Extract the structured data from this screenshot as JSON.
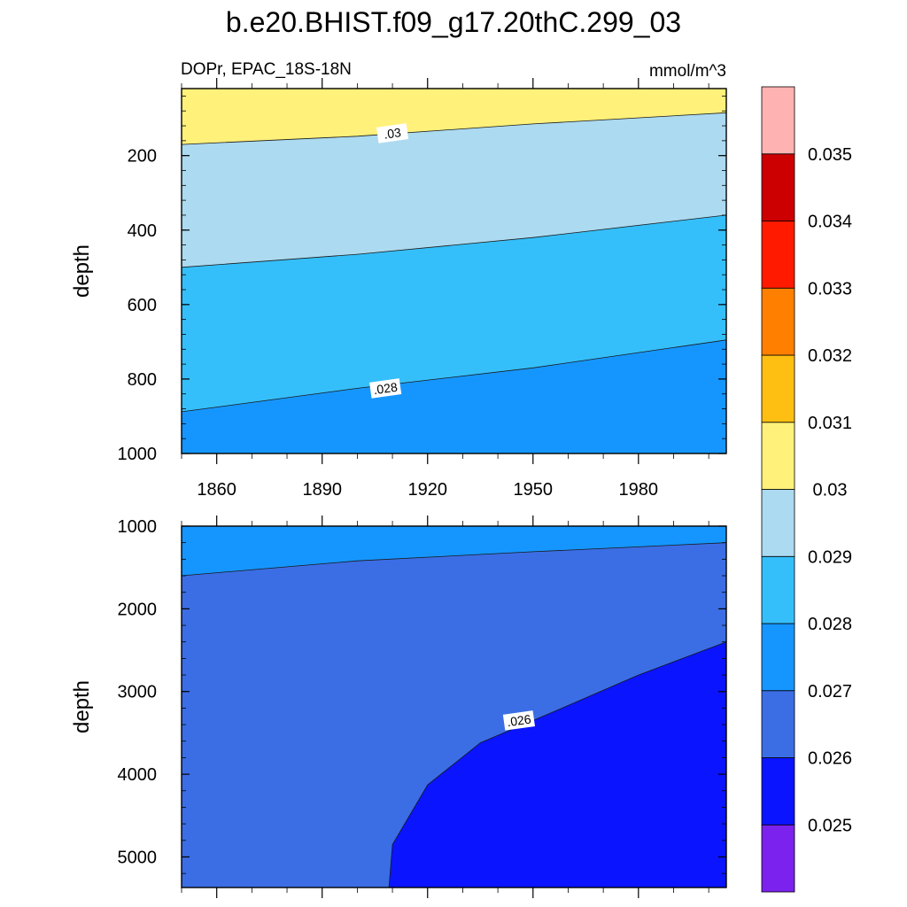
{
  "title": "b.e20.BHIST.f09_g17.20thC.299_03",
  "left_subtitle": "DOPr, EPAC_18S-18N",
  "right_subtitle": "mmol/m^3",
  "colors": {
    "0.0245": "#7B22EE",
    "0.0255": "#0A14FF",
    "0.0265": "#3B6EE5",
    "0.0275": "#1596FF",
    "0.0285": "#35BFFA",
    "0.0295": "#ACDAF0",
    "0.0305": "#FFF17A",
    "0.0315": "#FFBF12",
    "0.0325": "#FF7F00",
    "0.0335": "#FF1A00",
    "0.0345": "#CC0000",
    "0.0355": "#FFB2B2"
  },
  "chart_data": [
    {
      "type": "contour",
      "panel": "top",
      "ylabel": "depth",
      "x_ticks": [
        1860,
        1890,
        1920,
        1950,
        1980
      ],
      "y_ticks": [
        200,
        400,
        600,
        800,
        1000
      ],
      "xlim": [
        1850,
        2005
      ],
      "ylim": [
        1000,
        20
      ],
      "y_inverted": true,
      "background_band": 0.0275,
      "contours": [
        {
          "level": 0.028,
          "label": ".028",
          "upper_band": 0.0285,
          "points": [
            [
              1850,
              888
            ],
            [
              1900,
              825
            ],
            [
              1950,
              770
            ],
            [
              2005,
              695
            ]
          ],
          "label_at": [
            1908,
            825
          ]
        },
        {
          "level": 0.029,
          "upper_band": 0.0295,
          "points": [
            [
              1850,
              500
            ],
            [
              1900,
              465
            ],
            [
              1950,
              420
            ],
            [
              2005,
              360
            ]
          ]
        },
        {
          "level": 0.03,
          "label": ".03",
          "upper_band": 0.0305,
          "points": [
            [
              1850,
              170
            ],
            [
              1900,
              148
            ],
            [
              1950,
              115
            ],
            [
              2005,
              85
            ]
          ],
          "label_at": [
            1910,
            140
          ]
        }
      ]
    },
    {
      "type": "contour",
      "panel": "bottom",
      "ylabel": "depth",
      "x_ticks": [
        1860,
        1890,
        1920,
        1950,
        1980
      ],
      "y_ticks": [
        1000,
        2000,
        3000,
        4000,
        5000
      ],
      "xlim": [
        1850,
        2005
      ],
      "ylim": [
        1000,
        5370
      ],
      "y_inverted": true,
      "background_band": 0.0265,
      "contours": [
        {
          "level": 0.027,
          "upper_band": 0.0275,
          "points": [
            [
              1850,
              1600
            ],
            [
              1900,
              1420
            ],
            [
              1950,
              1310
            ],
            [
              2005,
              1200
            ]
          ]
        },
        {
          "level": 0.026,
          "label": ".026",
          "lower_band": 0.0255,
          "points": [
            [
              1909,
              5370
            ],
            [
              1910,
              4850
            ],
            [
              1920,
              4130
            ],
            [
              1935,
              3620
            ],
            [
              1955,
              3260
            ],
            [
              1980,
              2800
            ],
            [
              2005,
              2400
            ]
          ],
          "label_at": [
            1946,
            3350
          ]
        }
      ]
    }
  ],
  "colorbar": {
    "boxes": [
      0.0245,
      0.0255,
      0.0265,
      0.0275,
      0.0285,
      0.0295,
      0.0305,
      0.0315,
      0.0325,
      0.0335,
      0.0345,
      0.0355
    ],
    "labels": [
      "0.025",
      "0.026",
      "0.027",
      "0.028",
      "0.029",
      "0.03",
      "0.031",
      "0.032",
      "0.033",
      "0.034",
      "0.035"
    ]
  }
}
